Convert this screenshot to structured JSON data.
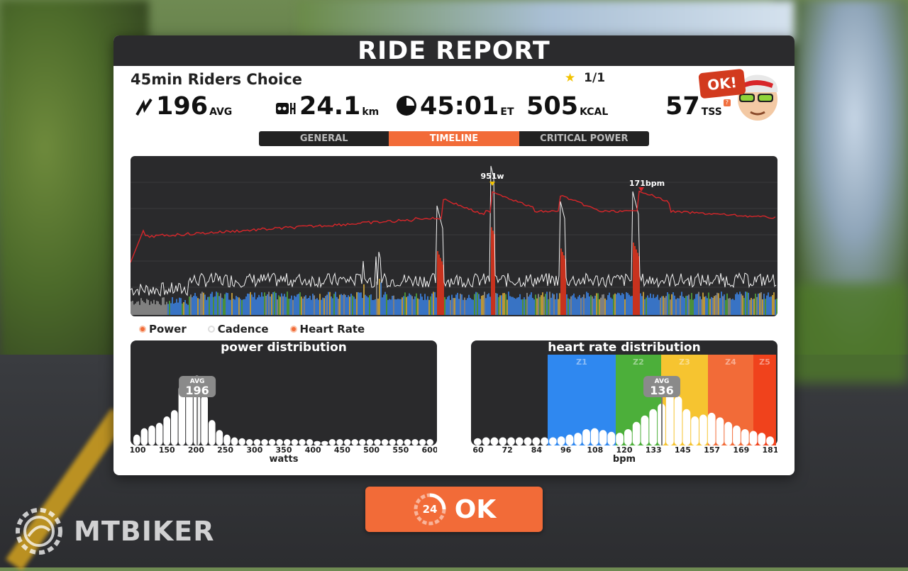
{
  "panel": {
    "title": "RIDE REPORT"
  },
  "workout": {
    "name": "45min Riders Choice",
    "stars": "1/1"
  },
  "stats": {
    "power": {
      "value": "196",
      "unit": "AVG",
      "icon": "lightning-icon"
    },
    "distance": {
      "value": "24.1",
      "unit": "km",
      "icon": "odometer-icon"
    },
    "time": {
      "value": "45:01",
      "unit": "ET",
      "icon": "clock-icon"
    },
    "energy": {
      "value": "505",
      "unit": "KCAL"
    },
    "tss": {
      "value": "57",
      "unit": "TSS",
      "help": "?"
    }
  },
  "avatar": {
    "badge": "OK!"
  },
  "tabs": [
    {
      "label": "GENERAL",
      "active": false
    },
    {
      "label": "TIMELINE",
      "active": true
    },
    {
      "label": "CRITICAL POWER",
      "active": false
    }
  ],
  "timeline": {
    "peak_power_label": "951w",
    "peak_hr_label": "171bpm",
    "colors": {
      "power_fill": "#3a7bd5",
      "hr_line": "#d8262a",
      "spike": "#c8321e"
    }
  },
  "legend": [
    {
      "label": "Power",
      "on": true
    },
    {
      "label": "Cadence",
      "on": false
    },
    {
      "label": "Heart Rate",
      "on": true
    }
  ],
  "power_distribution": {
    "title": "power distribution",
    "axis_label": "watts",
    "avg_label": "AVG",
    "avg_value": "196",
    "ticks": [
      "100",
      "150",
      "200",
      "250",
      "300",
      "350",
      "400",
      "450",
      "500",
      "550",
      "600"
    ],
    "bars": [
      0.12,
      0.19,
      0.22,
      0.25,
      0.32,
      0.39,
      0.66,
      0.76,
      0.77,
      0.55,
      0.28,
      0.17,
      0.12,
      0.09,
      0.08,
      0.07,
      0.07,
      0.07,
      0.07,
      0.07,
      0.07,
      0.07,
      0.07,
      0.07,
      0.05,
      0.05,
      0.07,
      0.07,
      0.07,
      0.07,
      0.07,
      0.07,
      0.07,
      0.07,
      0.07,
      0.07,
      0.07,
      0.07,
      0.07,
      0.07
    ]
  },
  "hr_distribution": {
    "title": "heart rate distribution",
    "axis_label": "bpm",
    "avg_label": "AVG",
    "avg_value": "136",
    "ticks": [
      "60",
      "72",
      "84",
      "96",
      "108",
      "120",
      "133",
      "145",
      "157",
      "169",
      "181"
    ],
    "zones": [
      {
        "label": "Z1",
        "color": "#2f88f0"
      },
      {
        "label": "Z2",
        "color": "#4caf3a"
      },
      {
        "label": "Z3",
        "color": "#f6c430"
      },
      {
        "label": "Z4",
        "color": "#f26b38"
      },
      {
        "label": "Z5",
        "color": "#f0421c"
      }
    ],
    "bars": [
      0.08,
      0.09,
      0.09,
      0.09,
      0.09,
      0.09,
      0.09,
      0.09,
      0.09,
      0.09,
      0.1,
      0.12,
      0.14,
      0.18,
      0.19,
      0.17,
      0.15,
      0.14,
      0.18,
      0.26,
      0.33,
      0.4,
      0.46,
      0.58,
      0.54,
      0.4,
      0.32,
      0.34,
      0.36,
      0.31,
      0.26,
      0.22,
      0.18,
      0.16,
      0.14,
      0.1
    ]
  },
  "ok_button": {
    "label": "OK",
    "countdown": "24"
  },
  "watermark": {
    "text": "MTBIKER"
  }
}
